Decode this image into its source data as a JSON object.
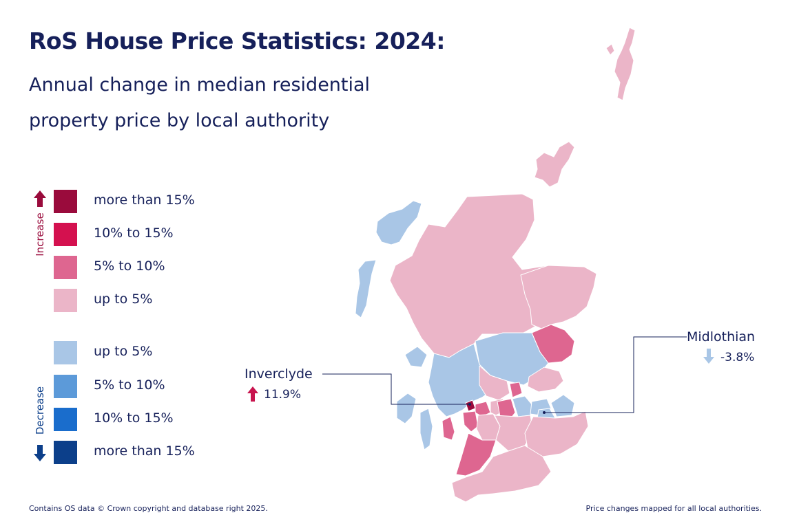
{
  "title": "RoS House Price Statistics: 2024:",
  "subtitle_lines": [
    "Annual change in median residential",
    "property price by local authority"
  ],
  "legend": {
    "increase_label": "Increase",
    "decrease_label": "Decrease",
    "increase": [
      {
        "label": "more than 15%",
        "color": "#9a0b3c"
      },
      {
        "label": "10% to 15%",
        "color": "#d4114f"
      },
      {
        "label": "5% to 10%",
        "color": "#de6690"
      },
      {
        "label": "up to 5%",
        "color": "#ebb5c8"
      }
    ],
    "decrease": [
      {
        "label": "up to 5%",
        "color": "#a9c6e6"
      },
      {
        "label": "5% to 10%",
        "color": "#5c9ad9"
      },
      {
        "label": "10% to 15%",
        "color": "#1a6dcc"
      },
      {
        "label": "more than 15%",
        "color": "#0c3f8a"
      }
    ]
  },
  "callouts": {
    "inverclyde": {
      "name": "Inverclyde",
      "value": "11.9%",
      "direction": "increase",
      "arrow_color": "#c8144e"
    },
    "midlothian": {
      "name": "Midlothian",
      "value": "-3.8%",
      "direction": "decrease",
      "arrow_color": "#a9c6e6"
    }
  },
  "footer": {
    "left": "Contains OS data © Crown copyright and database right 2025.",
    "right": "Price changes mapped for all local authorities."
  }
}
